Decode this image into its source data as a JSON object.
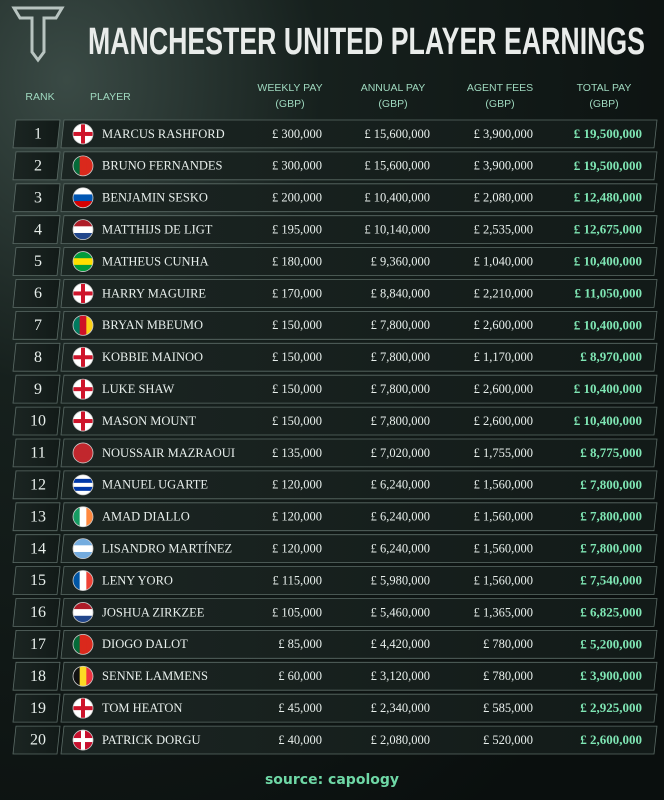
{
  "header": {
    "title": "MANCHESTER UNITED PLAYER EARNINGS"
  },
  "table": {
    "columns": {
      "rank": [
        "RANK"
      ],
      "player": [
        "PLAYER"
      ],
      "weekly": [
        "WEEKLY PAY",
        "(GBP)"
      ],
      "annual": [
        "ANNUAL PAY",
        "(GBP)"
      ],
      "agent": [
        "AGENT FEES",
        "(GBP)"
      ],
      "total": [
        "TOTAL PAY",
        "(GBP)"
      ]
    },
    "rows": [
      {
        "rank": 1,
        "player": "MARCUS RASHFORD",
        "weekly": "£ 300,000",
        "annual": "£ 15,600,000",
        "agent": "£ 3,900,000",
        "total": "£ 19,500,000"
      },
      {
        "rank": 2,
        "player": "BRUNO FERNANDES",
        "weekly": "£ 300,000",
        "annual": "£ 15,600,000",
        "agent": "£ 3,900,000",
        "total": "£ 19,500,000"
      },
      {
        "rank": 3,
        "player": "BENJAMIN SESKO",
        "weekly": "£ 200,000",
        "annual": "£ 10,400,000",
        "agent": "£ 2,080,000",
        "total": "£ 12,480,000"
      },
      {
        "rank": 4,
        "player": "MATTHIJS DE LIGT",
        "weekly": "£ 195,000",
        "annual": "£ 10,140,000",
        "agent": "£ 2,535,000",
        "total": "£ 12,675,000"
      },
      {
        "rank": 5,
        "player": "MATHEUS CUNHA",
        "weekly": "£ 180,000",
        "annual": "£ 9,360,000",
        "agent": "£ 1,040,000",
        "total": "£ 10,400,000"
      },
      {
        "rank": 6,
        "player": "HARRY MAGUIRE",
        "weekly": "£ 170,000",
        "annual": "£ 8,840,000",
        "agent": "£ 2,210,000",
        "total": "£ 11,050,000"
      },
      {
        "rank": 7,
        "player": "BRYAN MBEUMO",
        "weekly": "£ 150,000",
        "annual": "£ 7,800,000",
        "agent": "£ 2,600,000",
        "total": "£ 10,400,000"
      },
      {
        "rank": 8,
        "player": "KOBBIE MAINOO",
        "weekly": "£ 150,000",
        "annual": "£ 7,800,000",
        "agent": "£ 1,170,000",
        "total": "£ 8,970,000"
      },
      {
        "rank": 9,
        "player": "LUKE SHAW",
        "weekly": "£ 150,000",
        "annual": "£ 7,800,000",
        "agent": "£ 2,600,000",
        "total": "£ 10,400,000"
      },
      {
        "rank": 10,
        "player": "MASON MOUNT",
        "weekly": "£ 150,000",
        "annual": "£ 7,800,000",
        "agent": "£ 2,600,000",
        "total": "£ 10,400,000"
      },
      {
        "rank": 11,
        "player": "NOUSSAIR MAZRAOUI",
        "weekly": "£ 135,000",
        "annual": "£ 7,020,000",
        "agent": "£ 1,755,000",
        "total": "£ 8,775,000"
      },
      {
        "rank": 12,
        "player": "MANUEL UGARTE",
        "weekly": "£ 120,000",
        "annual": "£ 6,240,000",
        "agent": "£ 1,560,000",
        "total": "£ 7,800,000"
      },
      {
        "rank": 13,
        "player": "AMAD DIALLO",
        "weekly": "£ 120,000",
        "annual": "£ 6,240,000",
        "agent": "£ 1,560,000",
        "total": "£ 7,800,000"
      },
      {
        "rank": 14,
        "player": "LISANDRO MARTÍNEZ",
        "weekly": "£ 120,000",
        "annual": "£ 6,240,000",
        "agent": "£ 1,560,000",
        "total": "£ 7,800,000"
      },
      {
        "rank": 15,
        "player": "LENY YORO",
        "weekly": "£ 115,000",
        "annual": "£ 5,980,000",
        "agent": "£ 1,560,000",
        "total": "£ 7,540,000"
      },
      {
        "rank": 16,
        "player": "JOSHUA ZIRKZEE",
        "weekly": "£ 105,000",
        "annual": "£ 5,460,000",
        "agent": "£ 1,365,000",
        "total": "£ 6,825,000"
      },
      {
        "rank": 17,
        "player": "DIOGO DALOT",
        "weekly": "£ 85,000",
        "annual": "£ 4,420,000",
        "agent": "£ 780,000",
        "total": "£ 5,200,000"
      },
      {
        "rank": 18,
        "player": "SENNE LAMMENS",
        "weekly": "£ 60,000",
        "annual": "£ 3,120,000",
        "agent": "£ 780,000",
        "total": "£ 3,900,000"
      },
      {
        "rank": 19,
        "player": "TOM HEATON",
        "weekly": "£ 45,000",
        "annual": "£ 2,340,000",
        "agent": "£ 585,000",
        "total": "£ 2,925,000"
      },
      {
        "rank": 20,
        "player": "PATRICK DORGU",
        "weekly": "£ 40,000",
        "annual": "£ 2,080,000",
        "agent": "£ 520,000",
        "total": "£ 2,600,000"
      }
    ]
  },
  "footer": {
    "source": "source: capology"
  }
}
